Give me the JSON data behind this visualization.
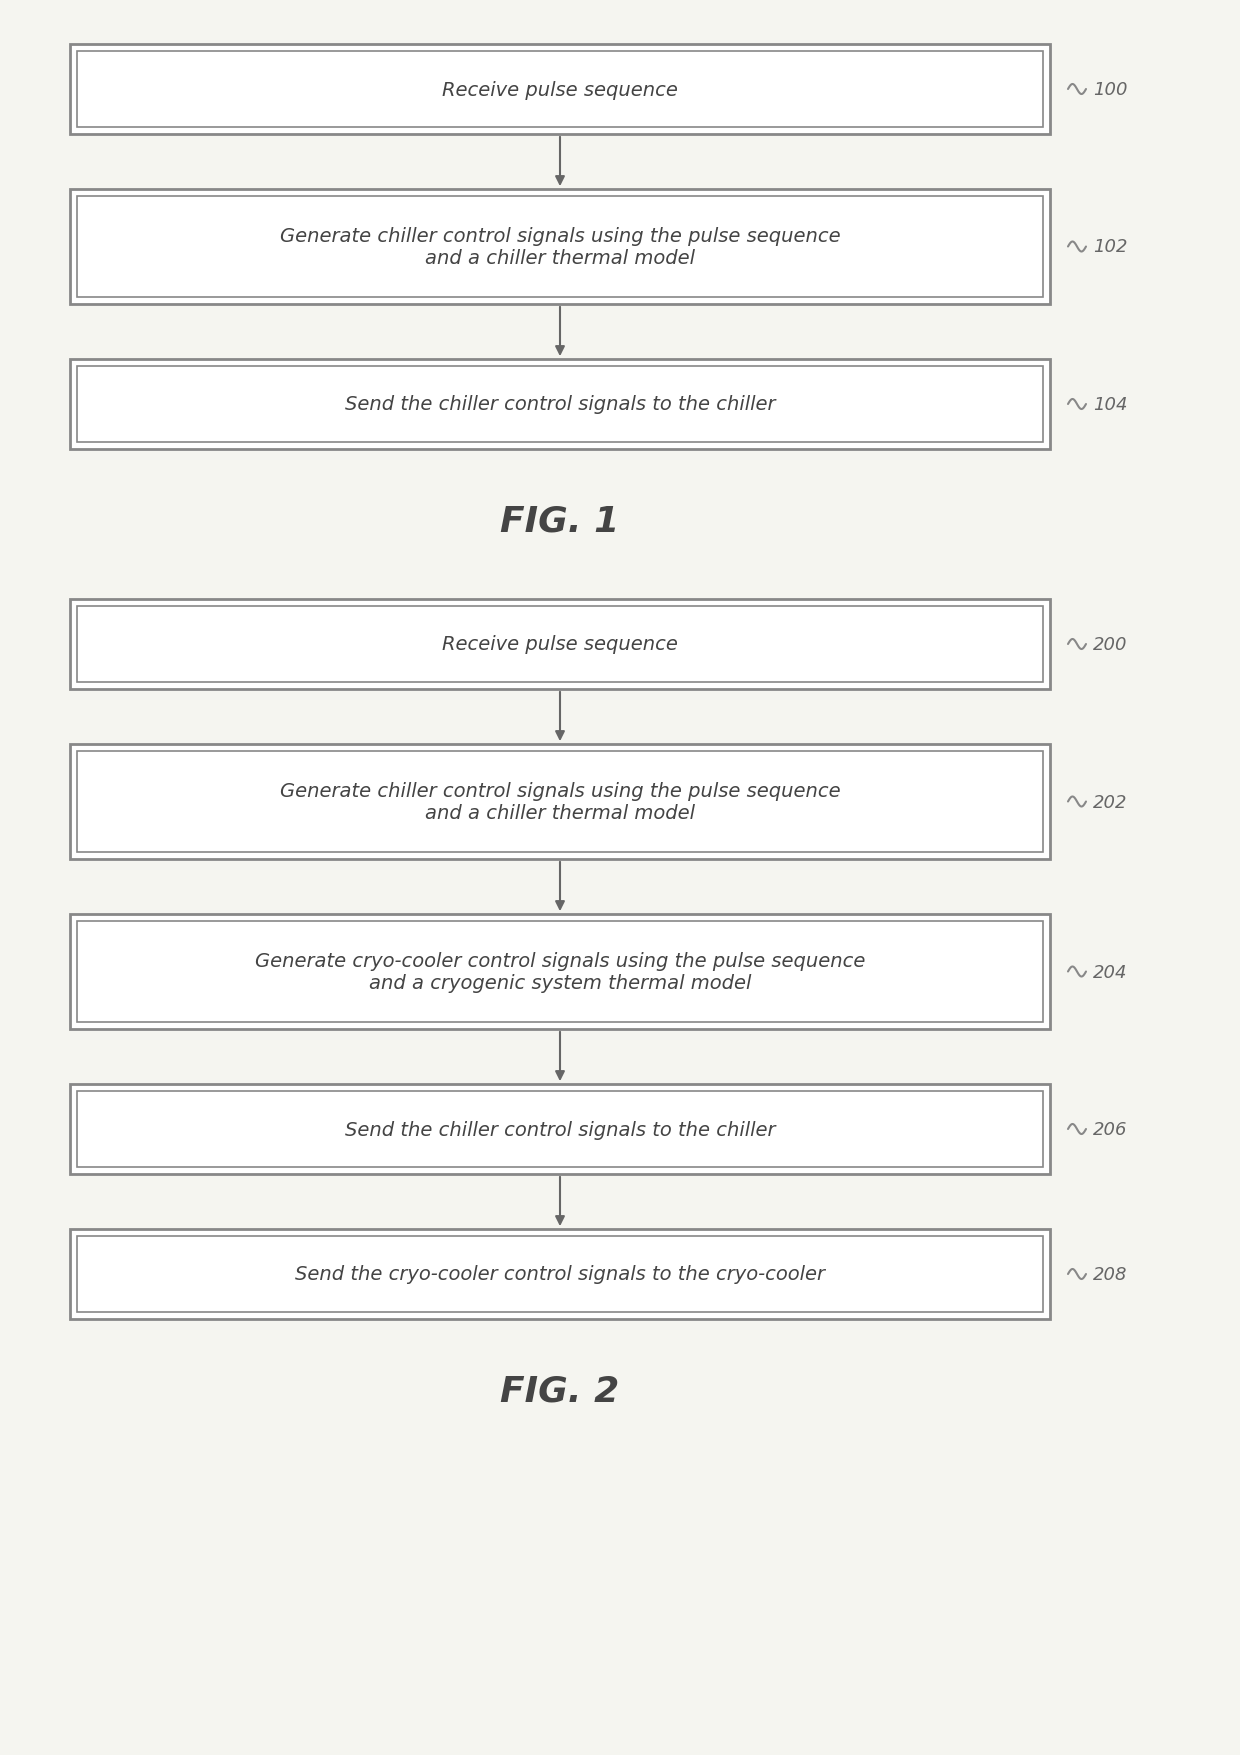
{
  "fig1": {
    "title": "FIG. 1",
    "boxes": [
      {
        "text": "Receive pulse sequence",
        "ref": "100",
        "lines": 1
      },
      {
        "text": "Generate chiller control signals using the pulse sequence\nand a chiller thermal model",
        "ref": "102",
        "lines": 2
      },
      {
        "text": "Send the chiller control signals to the chiller",
        "ref": "104",
        "lines": 1
      }
    ]
  },
  "fig2": {
    "title": "FIG. 2",
    "boxes": [
      {
        "text": "Receive pulse sequence",
        "ref": "200",
        "lines": 1
      },
      {
        "text": "Generate chiller control signals using the pulse sequence\nand a chiller thermal model",
        "ref": "202",
        "lines": 2
      },
      {
        "text": "Generate cryo-cooler control signals using the pulse sequence\nand a cryogenic system thermal model",
        "ref": "204",
        "lines": 2
      },
      {
        "text": "Send the chiller control signals to the chiller",
        "ref": "206",
        "lines": 1
      },
      {
        "text": "Send the cryo-cooler control signals to the cryo-cooler",
        "ref": "208",
        "lines": 1
      }
    ]
  },
  "bg_color": "#f5f5f0",
  "box_facecolor": "#ffffff",
  "box_edge_color": "#888888",
  "text_color": "#444444",
  "ref_color": "#666666",
  "arrow_color": "#666666",
  "font_size": 14,
  "ref_font_size": 13,
  "title_font_size": 26
}
